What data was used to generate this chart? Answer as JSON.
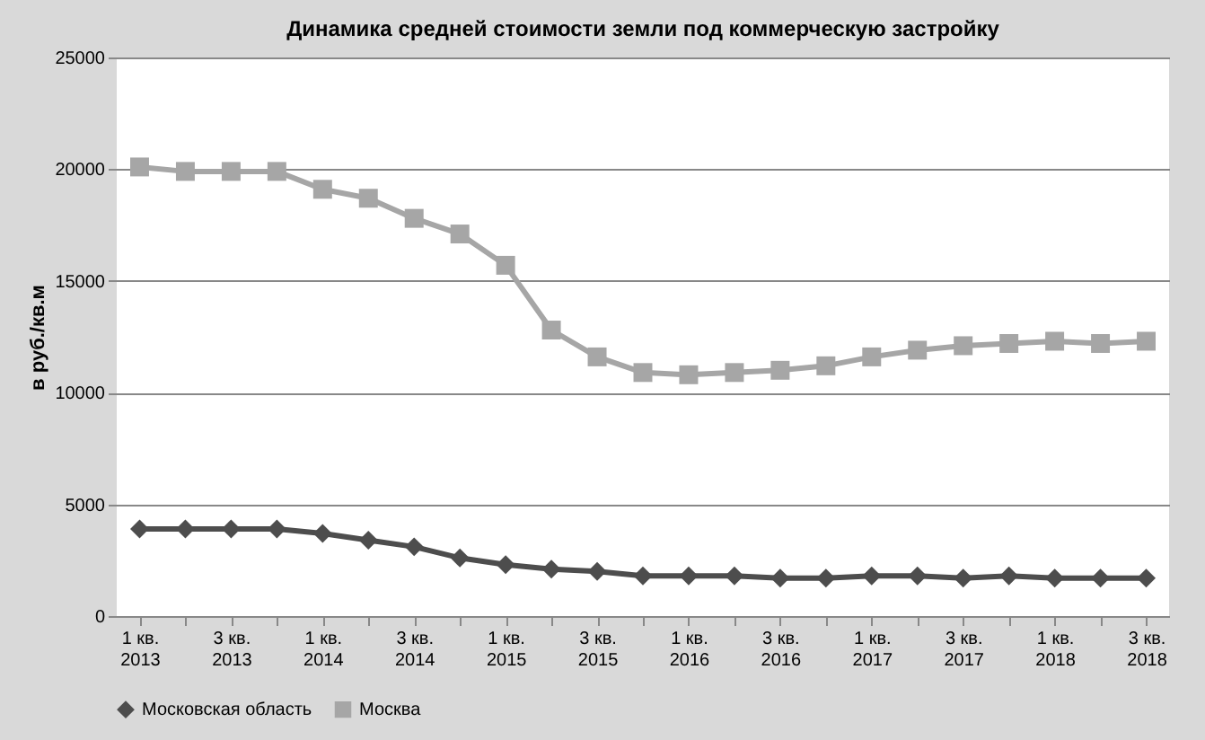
{
  "chart_data": {
    "type": "line",
    "title": "Динамика средней стоимости земли под коммерческую застройку",
    "ylabel": "в руб./кв.м",
    "categories": [
      "1 кв. 2013",
      null,
      "3 кв. 2013",
      null,
      "1 кв. 2014",
      null,
      "3 кв. 2014",
      null,
      "1 кв. 2015",
      null,
      "3 кв. 2015",
      null,
      "1 кв. 2016",
      null,
      "3 кв. 2016",
      null,
      "1 кв. 2017",
      null,
      "3 кв. 2017",
      null,
      "1 кв. 2018",
      null,
      "3 кв. 2018"
    ],
    "series": [
      {
        "name": "Московская область",
        "color": "#4d4d4d",
        "marker": "diamond",
        "values": [
          3900,
          3900,
          3900,
          3900,
          3700,
          3400,
          3100,
          2600,
          2300,
          2100,
          2000,
          1800,
          1800,
          1800,
          1700,
          1700,
          1800,
          1800,
          1700,
          1800,
          1700,
          1700,
          1700
        ]
      },
      {
        "name": "Москва",
        "color": "#a6a6a6",
        "marker": "square",
        "values": [
          20100,
          19900,
          19900,
          19900,
          19100,
          18700,
          17800,
          17100,
          15700,
          12800,
          11600,
          10900,
          10800,
          10900,
          11000,
          11200,
          11600,
          11900,
          12100,
          12200,
          12300,
          12200,
          12300
        ]
      }
    ],
    "ylim": [
      0,
      25000
    ],
    "yticks": [
      0,
      5000,
      10000,
      15000,
      20000,
      25000
    ],
    "grid": "y",
    "legend": "bottom",
    "line_style": "solid"
  }
}
